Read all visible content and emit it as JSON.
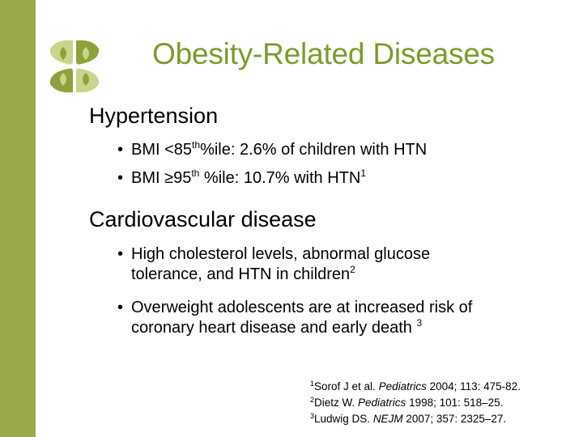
{
  "title": "Obesity-Related Diseases",
  "sections": [
    {
      "heading": "Hypertension",
      "bullets": [
        {
          "text": "BMI <85",
          "sup1": "th",
          "text2": "%ile:  2.6% of children with HTN"
        },
        {
          "text": "BMI ≥95",
          "sup1": "th",
          "text2": " %ile: 10.7% with HTN",
          "sup2": "1"
        }
      ]
    },
    {
      "heading": "Cardiovascular disease",
      "bullets": [
        {
          "line1": "High cholesterol levels, abnormal glucose",
          "line2": "tolerance, and HTN in children",
          "sup": "2"
        },
        {
          "line1": "Overweight adolescents are at increased risk of",
          "line2": "coronary heart disease and early death ",
          "sup": "3"
        }
      ]
    }
  ],
  "references": [
    {
      "num": "1",
      "author": "Sorof J et al. ",
      "journal": "Pediatrics",
      "rest": " 2004; 113: 475-82."
    },
    {
      "num": "2",
      "author": "Dietz W. ",
      "journal": "Pediatrics",
      "rest": " 1998; 101: 518–25."
    },
    {
      "num": "3",
      "author": "Ludwig DS. ",
      "journal": "NEJM",
      "rest": " 2007; 357: 2325–27."
    }
  ],
  "colors": {
    "sidebar": "#9aaa4a",
    "title": "#7e9a2e",
    "logo_light": "#c9d68a",
    "logo_dark": "#8ea23c"
  },
  "logo_icon": "flower-quatrefoil-logo"
}
